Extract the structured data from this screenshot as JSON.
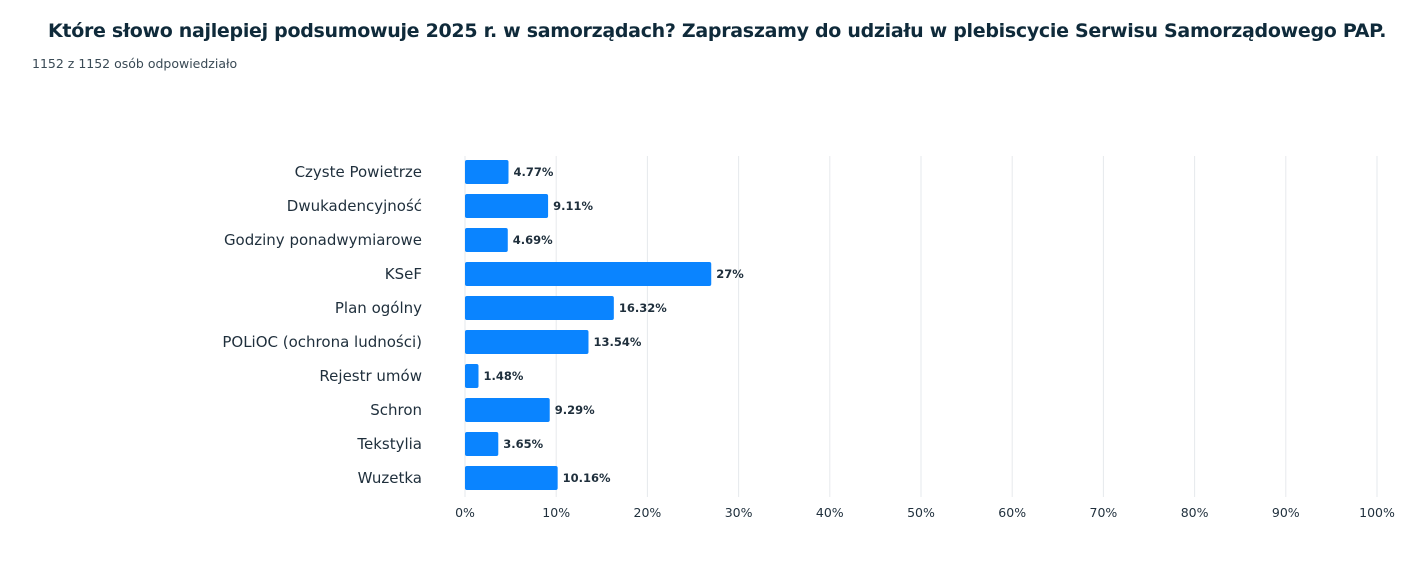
{
  "header": {
    "title": "Które słowo najlepiej podsumowuje 2025 r. w samorządach? Zapraszamy do udziału w plebiscycie Serwisu Samorządowego PAP.",
    "responses": "1152 z 1152 osób odpowiedziało"
  },
  "chart_data": {
    "type": "bar",
    "orientation": "horizontal",
    "categories": [
      "Czyste Powietrze",
      "Dwukadencyjność",
      "Godziny ponadwymiarowe",
      "KSeF",
      "Plan ogólny",
      "POLiOC (ochrona ludności)",
      "Rejestr umów",
      "Schron",
      "Tekstylia",
      "Wuzetka"
    ],
    "values": [
      4.77,
      9.11,
      4.69,
      27,
      16.32,
      13.54,
      1.48,
      9.29,
      3.65,
      10.16
    ],
    "value_labels": [
      "4.77%",
      "9.11%",
      "4.69%",
      "27%",
      "16.32%",
      "13.54%",
      "1.48%",
      "9.29%",
      "3.65%",
      "10.16%"
    ],
    "xlim": [
      0,
      100
    ],
    "x_ticks": [
      "0%",
      "10%",
      "20%",
      "30%",
      "40%",
      "50%",
      "60%",
      "70%",
      "80%",
      "90%",
      "100%"
    ],
    "grid": true,
    "bar_color": "#0a84ff"
  }
}
